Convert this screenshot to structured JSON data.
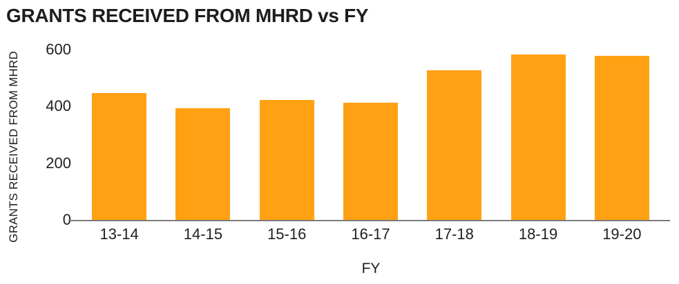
{
  "page": {
    "background_color": "#ffffff",
    "text_color": "#1d1d1d"
  },
  "chart": {
    "title": "GRANTS RECEIVED FROM MHRD vs FY",
    "x_axis_title": "FY",
    "y_axis_title": "GRANTS RECEIVED FROM MHRD",
    "bar_color": "#FFA112",
    "axis_line_color": "#7b7b7b"
  },
  "chart_data": {
    "type": "bar",
    "title": "GRANTS RECEIVED FROM MHRD vs FY",
    "xlabel": "FY",
    "ylabel": "GRANTS RECEIVED FROM MHRD",
    "categories": [
      "13-14",
      "14-15",
      "15-16",
      "16-17",
      "17-18",
      "18-19",
      "19-20"
    ],
    "values": [
      450,
      395,
      425,
      415,
      530,
      585,
      580
    ],
    "ylim": [
      0,
      600
    ],
    "yticks": [
      0,
      200,
      400,
      600
    ],
    "grid": false,
    "legend_position": "none",
    "bar_color": "#FFA112"
  }
}
